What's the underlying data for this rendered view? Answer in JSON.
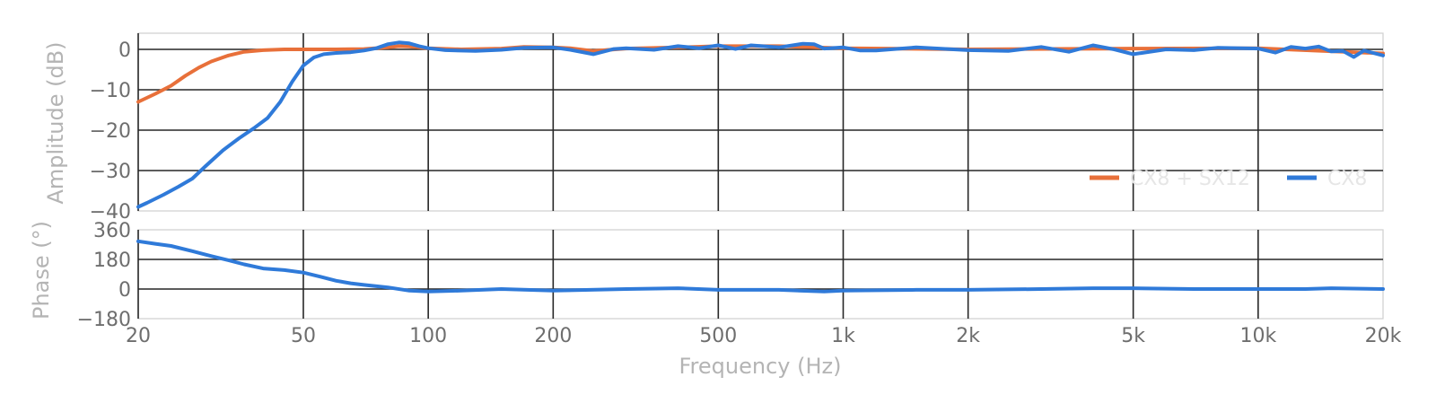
{
  "chart_data": [
    {
      "type": "line",
      "panel": "amplitude",
      "xscale": "log",
      "xlim": [
        20,
        20000
      ],
      "ylim": [
        -40,
        4
      ],
      "ylabel": "Amplitude (dB)",
      "yticks": [
        0,
        -10,
        -20,
        -30,
        -40
      ],
      "ytick_labels": [
        "0",
        "−10",
        "−20",
        "−30",
        "−40"
      ],
      "xticks": [
        20,
        50,
        100,
        200,
        500,
        1000,
        2000,
        5000,
        10000,
        20000
      ],
      "grid": true,
      "legend_position": "right",
      "series": [
        {
          "name": "CX8 + SX12",
          "color": "#e8703a",
          "x": [
            20,
            22,
            24,
            26,
            28,
            30,
            33,
            36,
            40,
            45,
            50,
            60,
            70,
            80,
            85,
            90,
            100,
            120,
            150,
            170,
            200,
            220,
            250,
            300,
            400,
            500,
            700,
            1000,
            2000,
            5000,
            10000,
            20000
          ],
          "y": [
            -13,
            -11,
            -9,
            -6.5,
            -4.5,
            -3,
            -1.5,
            -0.6,
            -0.2,
            0,
            0,
            0,
            0.1,
            0.5,
            0.8,
            0.7,
            0.3,
            0,
            0.2,
            0.6,
            0.5,
            0.3,
            -0.4,
            0.2,
            0.5,
            0.8,
            0.8,
            0.3,
            0,
            0.2,
            0.3,
            -1
          ]
        },
        {
          "name": "CX8",
          "color": "#2f7ad9",
          "x": [
            20,
            21,
            23,
            25,
            27,
            29,
            32,
            35,
            38,
            41,
            44,
            47,
            50,
            53,
            56,
            60,
            65,
            70,
            75,
            80,
            85,
            90,
            95,
            100,
            110,
            130,
            150,
            170,
            200,
            220,
            250,
            280,
            300,
            350,
            400,
            450,
            500,
            550,
            600,
            700,
            800,
            850,
            900,
            1000,
            1100,
            1200,
            1500,
            2000,
            2500,
            3000,
            3500,
            4000,
            4500,
            5000,
            6000,
            7000,
            8000,
            10000,
            11000,
            12000,
            13000,
            14000,
            15000,
            16000,
            17000,
            18000,
            20000
          ],
          "y": [
            -39,
            -38,
            -36,
            -34,
            -32,
            -29,
            -25,
            -22,
            -19.5,
            -17,
            -13,
            -8,
            -4,
            -2,
            -1.2,
            -0.9,
            -0.7,
            -0.3,
            0.3,
            1.3,
            1.7,
            1.5,
            0.8,
            0.3,
            -0.2,
            -0.4,
            -0.1,
            0.4,
            0.5,
            -0.1,
            -1.2,
            0.1,
            0.3,
            -0.1,
            0.8,
            0.3,
            1.0,
            0.1,
            1.0,
            0.5,
            1.4,
            1.3,
            0.2,
            0.5,
            -0.3,
            -0.3,
            0.5,
            -0.2,
            -0.4,
            0.6,
            -0.6,
            1.0,
            0.0,
            -1.2,
            0.0,
            -0.2,
            0.4,
            0.2,
            -0.8,
            0.6,
            0.2,
            0.7,
            -0.5,
            -0.4,
            -1.9,
            -0.3,
            -1.5
          ]
        }
      ]
    },
    {
      "type": "line",
      "panel": "phase",
      "xscale": "log",
      "xlim": [
        20,
        20000
      ],
      "ylim": [
        -180,
        360
      ],
      "xlabel": "Frequency (Hz)",
      "ylabel": "Phase (°)",
      "yticks": [
        360,
        180,
        0,
        -180
      ],
      "ytick_labels": [
        "360",
        "180",
        "0",
        "−180"
      ],
      "xticks": [
        20,
        50,
        100,
        200,
        500,
        1000,
        2000,
        5000,
        10000,
        20000
      ],
      "xtick_labels": [
        "20",
        "50",
        "100",
        "200",
        "500",
        "1k",
        "2k",
        "5k",
        "10k",
        "20k"
      ],
      "grid": true,
      "series": [
        {
          "color": "#2f7ad9",
          "x": [
            20,
            22,
            24,
            27,
            30,
            33,
            36,
            40,
            45,
            50,
            55,
            60,
            65,
            70,
            80,
            90,
            100,
            120,
            150,
            200,
            300,
            400,
            500,
            700,
            900,
            1000,
            1500,
            2000,
            3000,
            4000,
            5000,
            7000,
            10000,
            13000,
            15000,
            20000
          ],
          "y": [
            290,
            275,
            262,
            230,
            200,
            175,
            150,
            125,
            115,
            100,
            75,
            50,
            35,
            25,
            10,
            -10,
            -15,
            -10,
            0,
            -10,
            0,
            5,
            -5,
            -5,
            -15,
            -10,
            -5,
            -5,
            0,
            5,
            5,
            0,
            0,
            0,
            5,
            0
          ]
        }
      ]
    }
  ]
}
